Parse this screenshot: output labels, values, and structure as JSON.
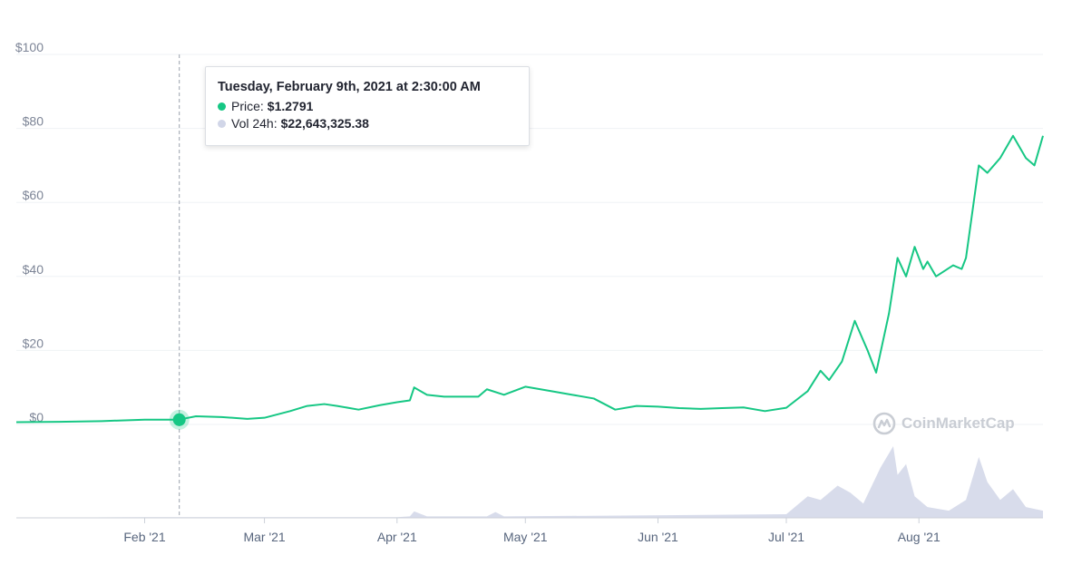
{
  "tooltip": {
    "title": "Tuesday, February 9th, 2021 at 2:30:00 AM",
    "price_label": "Price:",
    "price_value": "$1.2791",
    "volume_label": "Vol 24h:",
    "volume_value": "$22,643,325.38",
    "price_color": "#16c784",
    "volume_color": "#d1d6e8"
  },
  "watermark": {
    "text": "CoinMarketCap",
    "icon": "coinmarketcap-logo-icon"
  },
  "chart_data": {
    "type": "line",
    "title": "",
    "xlabel": "",
    "ylabel": "",
    "ylim": [
      0,
      100
    ],
    "y_ticks": [
      "$100",
      "$80",
      "$60",
      "$40",
      "$20",
      "$0"
    ],
    "y_tick_values": [
      100,
      80,
      60,
      40,
      20,
      0
    ],
    "x_ticks": [
      "Feb '21",
      "Mar '21",
      "Apr '21",
      "May '21",
      "Jun '21",
      "Jul '21",
      "Aug '21"
    ],
    "x_tick_days": [
      0,
      28,
      59,
      89,
      120,
      150,
      181
    ],
    "x_range_days": [
      -30,
      210
    ],
    "grid": "horizontal",
    "highlight_point": {
      "x_day": 8.1,
      "y": 1.2791
    },
    "series": [
      {
        "name": "Price",
        "color": "#16c784",
        "x_days": [
          -30,
          -20,
          -10,
          0,
          8,
          12,
          18,
          24,
          28,
          34,
          38,
          42,
          45,
          50,
          55,
          59,
          62,
          63,
          66,
          70,
          75,
          78,
          80,
          84,
          89,
          95,
          100,
          105,
          110,
          115,
          120,
          125,
          130,
          135,
          140,
          145,
          150,
          155,
          158,
          160,
          163,
          166,
          169,
          171,
          174,
          176,
          178,
          180,
          182,
          183,
          185,
          189,
          191,
          192,
          195,
          197,
          200,
          203,
          206,
          208,
          210
        ],
        "values": [
          0.6,
          0.7,
          0.9,
          1.3,
          1.3,
          2.2,
          2.0,
          1.5,
          1.8,
          3.6,
          5.0,
          5.5,
          5.0,
          4.0,
          5.2,
          6.0,
          6.5,
          10.0,
          8.0,
          7.5,
          7.5,
          7.5,
          9.5,
          8.0,
          10.2,
          9.0,
          8.0,
          7.0,
          4.0,
          5.0,
          4.8,
          4.4,
          4.2,
          4.4,
          4.6,
          3.6,
          4.5,
          9.0,
          14.5,
          12.0,
          17.0,
          28.0,
          20.0,
          14.0,
          30.0,
          45.0,
          40.0,
          48.0,
          42.0,
          44.0,
          40.0,
          43.0,
          42.0,
          45.0,
          70.0,
          68.0,
          72.0,
          78.0,
          72.0,
          70.0,
          78.0
        ]
      },
      {
        "name": "Vol 24h",
        "color": "#d1d6e8",
        "x_days": [
          -30,
          0,
          59,
          62,
          63,
          66,
          80,
          82,
          84,
          150,
          155,
          158,
          162,
          165,
          168,
          172,
          175,
          176,
          178,
          180,
          183,
          188,
          192,
          195,
          197,
          200,
          203,
          206,
          210
        ],
        "volume_relative": [
          0.0,
          0.01,
          0.01,
          0.02,
          0.09,
          0.02,
          0.02,
          0.08,
          0.02,
          0.05,
          0.3,
          0.25,
          0.45,
          0.35,
          0.2,
          0.7,
          1.0,
          0.6,
          0.75,
          0.3,
          0.15,
          0.1,
          0.25,
          0.85,
          0.5,
          0.25,
          0.4,
          0.15,
          0.1
        ]
      }
    ]
  }
}
